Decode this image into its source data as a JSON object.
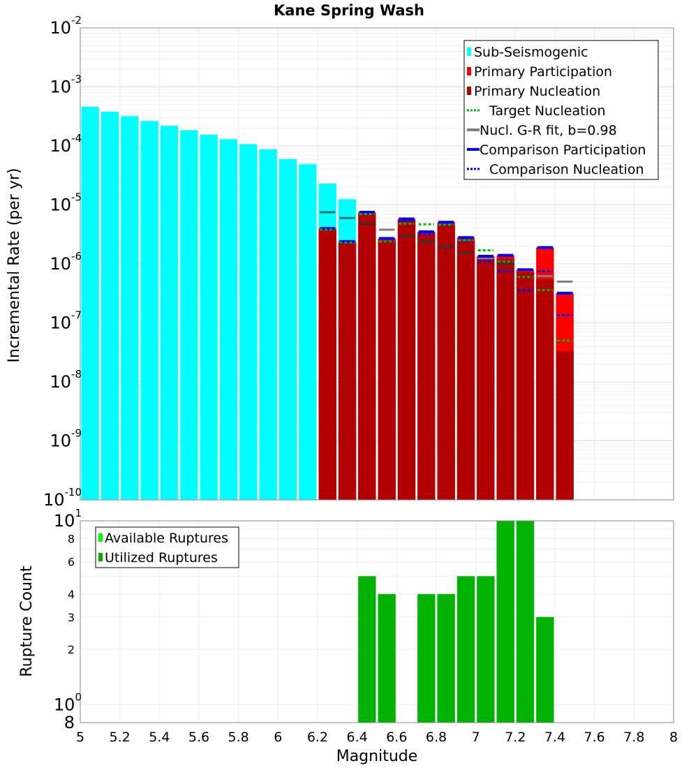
{
  "chart_data": [
    {
      "type": "bar",
      "title": "Kane Spring Wash",
      "ylabel": "Incremental Rate (per yr)",
      "yscale": "log",
      "ylim": [
        1e-10,
        0.01
      ],
      "xlim": [
        5,
        8
      ],
      "y_ticks": [
        {
          "value": 1e-10,
          "base": "10",
          "exp": "-10"
        },
        {
          "value": 1e-09,
          "base": "10",
          "exp": "-9"
        },
        {
          "value": 1e-08,
          "base": "10",
          "exp": "-8"
        },
        {
          "value": 1e-07,
          "base": "10",
          "exp": "-7"
        },
        {
          "value": 1e-06,
          "base": "10",
          "exp": "-6"
        },
        {
          "value": 1e-05,
          "base": "10",
          "exp": "-5"
        },
        {
          "value": 0.0001,
          "base": "10",
          "exp": "-4"
        },
        {
          "value": 0.001,
          "base": "10",
          "exp": "-3"
        },
        {
          "value": 0.01,
          "base": "10",
          "exp": "-2"
        }
      ],
      "legend_position": "top-right",
      "legend": [
        {
          "label": "Sub-Seismogenic",
          "color": "#00ffff",
          "style": "bar"
        },
        {
          "label": "Primary Participation",
          "color": "#ff0000",
          "style": "bar"
        },
        {
          "label": "Primary Nucleation",
          "color": "#b30000",
          "style": "bar"
        },
        {
          "label": "Target Nucleation",
          "color": "#00bb00",
          "style": "dotted"
        },
        {
          "label": "Nucl. G-R fit, b=0.98",
          "color": "#808080",
          "style": "line"
        },
        {
          "label": "Comparison Participation",
          "color": "#0000ff",
          "style": "line"
        },
        {
          "label": "Comparison Nucleation",
          "color": "#0000ff",
          "style": "dotted"
        }
      ],
      "series": [
        {
          "name": "Sub-Seismogenic",
          "color": "#00ffff",
          "x": [
            5.05,
            5.15,
            5.25,
            5.35,
            5.45,
            5.55,
            5.65,
            5.75,
            5.85,
            5.95,
            6.05,
            6.15,
            6.25,
            6.35
          ],
          "values": [
            0.00046,
            0.00038,
            0.00032,
            0.000265,
            0.00022,
            0.000185,
            0.000155,
            0.00013,
            0.000107,
            8.8e-05,
            6e-05,
            4.9e-05,
            2.3e-05,
            1.25e-05
          ]
        },
        {
          "name": "Primary Participation",
          "color": "#ff0000",
          "x": [
            6.25,
            6.35,
            6.45,
            6.55,
            6.65,
            6.75,
            6.85,
            6.95,
            7.05,
            7.15,
            7.25,
            7.35,
            7.45
          ],
          "values": [
            4e-06,
            2.4e-06,
            7.5e-06,
            2.7e-06,
            5.8e-06,
            3.5e-06,
            5.1e-06,
            2.8e-06,
            1.35e-06,
            1.4e-06,
            8e-07,
            1.9e-06,
            3.2e-07
          ]
        },
        {
          "name": "Primary Nucleation",
          "color": "#b30000",
          "x": [
            6.25,
            6.35,
            6.45,
            6.55,
            6.65,
            6.75,
            6.85,
            6.95,
            7.05,
            7.15,
            7.25,
            7.35,
            7.45
          ],
          "values": [
            3.8e-06,
            2.3e-06,
            7e-06,
            2.5e-06,
            5.5e-06,
            3.2e-06,
            4.7e-06,
            2.5e-06,
            1.2e-06,
            1.2e-06,
            7.2e-07,
            5.5e-07,
            3.3e-08
          ]
        },
        {
          "name": "Target Nucleation",
          "color": "#00bb00",
          "x": [
            6.25,
            6.35,
            6.45,
            6.55,
            6.65,
            6.75,
            6.85,
            6.95,
            7.05,
            7.15,
            7.25,
            7.35,
            7.45
          ],
          "values": [
            3.8e-06,
            2.3e-06,
            7e-06,
            2.4e-06,
            4.8e-06,
            4.7e-06,
            4.6e-06,
            2.5e-06,
            1.7e-06,
            1.1e-06,
            6e-07,
            3.6e-07,
            5e-08
          ]
        },
        {
          "name": "Nucl. G-R fit, b=0.98",
          "color": "#808080",
          "x": [
            6.25,
            6.35,
            6.45,
            6.55,
            6.65,
            6.75,
            6.85,
            6.95,
            7.05,
            7.15,
            7.25,
            7.35,
            7.45
          ],
          "values": [
            7.5e-06,
            6e-06,
            4.8e-06,
            3.8e-06,
            3e-06,
            2.4e-06,
            1.95e-06,
            1.55e-06,
            1.25e-06,
            1e-06,
            8e-07,
            6.2e-07,
            5e-07
          ]
        },
        {
          "name": "Comparison Participation",
          "color": "#0000ff",
          "x": [
            6.25,
            6.35,
            6.45,
            6.55,
            6.65,
            6.75,
            6.85,
            6.95,
            7.05,
            7.15,
            7.25,
            7.35,
            7.45
          ],
          "values": [
            4e-06,
            2.4e-06,
            7.5e-06,
            2.7e-06,
            5.8e-06,
            3.5e-06,
            5.1e-06,
            2.8e-06,
            1.35e-06,
            1.4e-06,
            8e-07,
            1.9e-06,
            3.2e-07
          ]
        },
        {
          "name": "Comparison Nucleation",
          "color": "#0000ff",
          "x": [
            6.25,
            6.35,
            6.45,
            6.55,
            6.65,
            6.75,
            6.85,
            6.95,
            7.05,
            7.15,
            7.25,
            7.35,
            7.45
          ],
          "values": [
            3.8e-06,
            2.3e-06,
            7e-06,
            2.4e-06,
            5.4e-06,
            3.2e-06,
            4.5e-06,
            2.4e-06,
            1.1e-06,
            7.5e-07,
            3.6e-07,
            7.5e-07,
            1.35e-07
          ]
        }
      ]
    },
    {
      "type": "bar",
      "ylabel": "Rupture Count",
      "xlabel": "Magnitude",
      "yscale": "log",
      "ylim": [
        0.8,
        10
      ],
      "xlim": [
        5,
        8
      ],
      "x_ticks": [
        "5",
        "5.2",
        "5.4",
        "5.6",
        "5.8",
        "6",
        "6.2",
        "6.4",
        "6.6",
        "6.8",
        "7",
        "7.2",
        "7.4",
        "7.6",
        "7.8",
        "8"
      ],
      "y_ticks": [
        {
          "value": 0.8,
          "base": "8",
          "exp": ""
        },
        {
          "value": 1,
          "base": "10",
          "exp": "0"
        },
        {
          "value": 2,
          "base": "2",
          "exp": ""
        },
        {
          "value": 3,
          "base": "3",
          "exp": ""
        },
        {
          "value": 4,
          "base": "4",
          "exp": ""
        },
        {
          "value": 6,
          "base": "6",
          "exp": ""
        },
        {
          "value": 8,
          "base": "8",
          "exp": ""
        },
        {
          "value": 10,
          "base": "10",
          "exp": "1"
        }
      ],
      "legend_position": "top-left",
      "legend": [
        {
          "label": "Available Ruptures",
          "color": "#00ff00",
          "style": "bar"
        },
        {
          "label": "Utilized Ruptures",
          "color": "#00b300",
          "style": "bar"
        }
      ],
      "series": [
        {
          "name": "Utilized Ruptures",
          "color": "#00b300",
          "x": [
            6.45,
            6.55,
            6.75,
            6.85,
            6.95,
            7.05,
            7.15,
            7.25,
            7.35
          ],
          "values": [
            5,
            4,
            4,
            4,
            5,
            5,
            10,
            10,
            3
          ]
        }
      ]
    }
  ]
}
